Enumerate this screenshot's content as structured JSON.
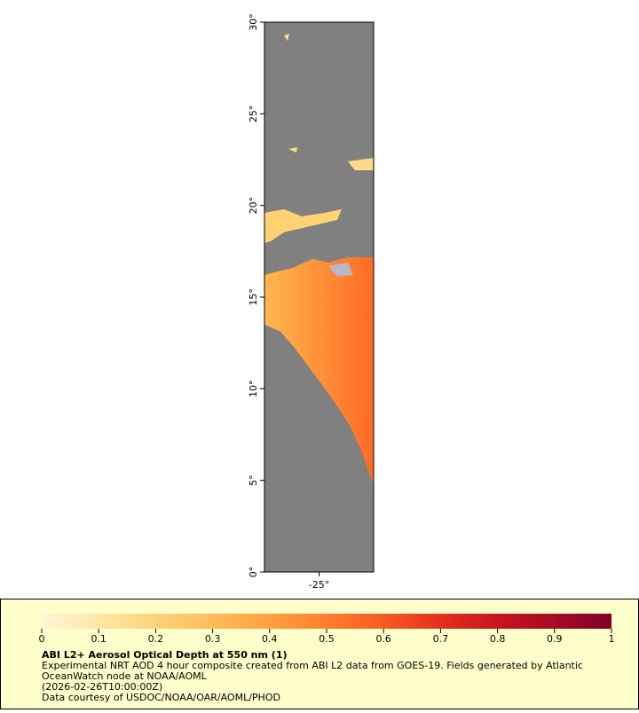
{
  "map": {
    "ylim": [
      0,
      30
    ],
    "yticks": [
      {
        "value": 0,
        "label": "0°"
      },
      {
        "value": 5,
        "label": "5°"
      },
      {
        "value": 10,
        "label": "10°"
      },
      {
        "value": 15,
        "label": "15°"
      },
      {
        "value": 20,
        "label": "20°"
      },
      {
        "value": 25,
        "label": "25°"
      },
      {
        "value": 30,
        "label": "30°"
      }
    ],
    "xlim": [
      -28,
      -22
    ],
    "xticks": [
      {
        "value": -25,
        "label": "-25°"
      }
    ]
  },
  "legend": {
    "colorbar": {
      "lim": [
        0,
        1
      ],
      "ticks": [
        0,
        0.1,
        0.2,
        0.3,
        0.4,
        0.5,
        0.6,
        0.7,
        0.8,
        0.9,
        1
      ],
      "colors": [
        "#fff5d6",
        "#ffe7a8",
        "#ffd27a",
        "#ffbc5c",
        "#ffa040",
        "#ff7f2e",
        "#f95a22",
        "#e4301c",
        "#c8141e",
        "#a80a24",
        "#800026"
      ]
    },
    "title": "ABI L2+ Aerosol Optical Depth at 550 nm (1)",
    "lines": [
      "Experimental NRT AOD 4 hour composite created from ABI L2 data from GOES-19. Fields generated by Atlantic",
      "OceanWatch node at NOAA/AOML",
      "(2026-02-26T10:00:00Z)",
      "Data courtesy of USDOC/NOAA/OAR/AOML/PHOD"
    ]
  }
}
